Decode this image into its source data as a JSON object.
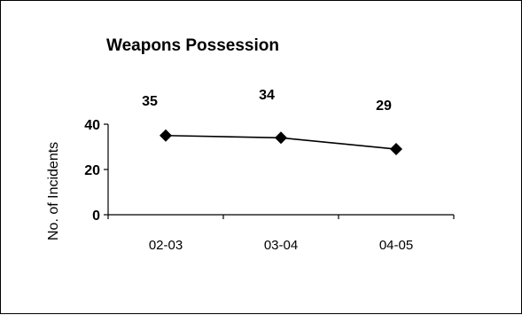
{
  "chart_data": {
    "type": "line",
    "title": "Weapons Possession",
    "ylabel": "No. of Incidents",
    "xlabel": "",
    "categories": [
      "02-03",
      "03-04",
      "04-05"
    ],
    "values": [
      35,
      34,
      29
    ],
    "data_labels": [
      "35",
      "34",
      "29"
    ],
    "ylim": [
      0,
      40
    ],
    "y_ticks": [
      0,
      20,
      40
    ],
    "y_tick_labels": [
      "0",
      "20",
      "40"
    ],
    "grid": false,
    "legend": "none",
    "colors": {
      "line": "#000000",
      "marker": "#000000",
      "background": "#ffffff"
    },
    "marker": "diamond"
  }
}
